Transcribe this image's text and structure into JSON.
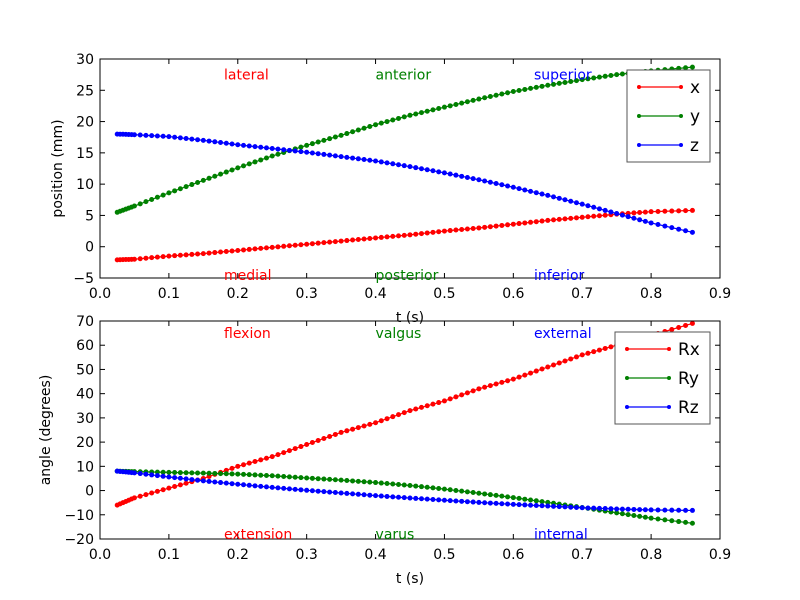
{
  "chart_data": [
    {
      "type": "line",
      "xlabel": "t (s)",
      "ylabel": "position (mm)",
      "xlim": [
        0.0,
        0.9
      ],
      "ylim": [
        -5,
        30
      ],
      "xticks": [
        "0.0",
        "0.1",
        "0.2",
        "0.3",
        "0.4",
        "0.5",
        "0.6",
        "0.7",
        "0.8",
        "0.9"
      ],
      "yticks": [
        "−5",
        "0",
        "5",
        "10",
        "15",
        "20",
        "25",
        "30"
      ],
      "grid": false,
      "legend_position": "top-right",
      "annotations": [
        {
          "text": "lateral",
          "x": 0.18,
          "y": 27.5,
          "color": "#ff0000"
        },
        {
          "text": "anterior",
          "x": 0.4,
          "y": 27.5,
          "color": "#008000"
        },
        {
          "text": "superior",
          "x": 0.63,
          "y": 27.5,
          "color": "#0000ff"
        },
        {
          "text": "medial",
          "x": 0.18,
          "y": -4.5,
          "color": "#ff0000"
        },
        {
          "text": "posterior",
          "x": 0.4,
          "y": -4.5,
          "color": "#008000"
        },
        {
          "text": "inferior",
          "x": 0.63,
          "y": -4.5,
          "color": "#0000ff"
        }
      ],
      "series": [
        {
          "name": "x",
          "color": "#ff0000",
          "x": [
            0.025,
            0.05,
            0.1,
            0.15,
            0.2,
            0.25,
            0.3,
            0.35,
            0.4,
            0.45,
            0.5,
            0.55,
            0.6,
            0.65,
            0.7,
            0.75,
            0.8,
            0.86
          ],
          "y": [
            -2.1,
            -2.0,
            -1.5,
            -1.1,
            -0.6,
            -0.1,
            0.4,
            0.9,
            1.4,
            1.9,
            2.5,
            3.0,
            3.6,
            4.2,
            4.7,
            5.2,
            5.6,
            5.8
          ]
        },
        {
          "name": "y",
          "color": "#008000",
          "x": [
            0.025,
            0.05,
            0.1,
            0.15,
            0.2,
            0.25,
            0.3,
            0.35,
            0.4,
            0.45,
            0.5,
            0.55,
            0.6,
            0.65,
            0.7,
            0.75,
            0.8,
            0.86
          ],
          "y": [
            5.5,
            6.5,
            8.6,
            10.6,
            12.6,
            14.5,
            16.2,
            17.8,
            19.5,
            21.0,
            22.3,
            23.6,
            24.8,
            25.8,
            26.7,
            27.5,
            28.1,
            28.7
          ]
        },
        {
          "name": "z",
          "color": "#0000ff",
          "x": [
            0.025,
            0.05,
            0.1,
            0.15,
            0.2,
            0.25,
            0.3,
            0.35,
            0.4,
            0.45,
            0.5,
            0.55,
            0.6,
            0.65,
            0.7,
            0.75,
            0.8,
            0.86
          ],
          "y": [
            18.0,
            17.9,
            17.6,
            17.0,
            16.3,
            15.7,
            15.1,
            14.4,
            13.7,
            12.8,
            11.8,
            10.7,
            9.5,
            8.2,
            6.8,
            5.3,
            3.8,
            2.3
          ]
        }
      ]
    },
    {
      "type": "line",
      "xlabel": "t (s)",
      "ylabel": "angle (degrees)",
      "xlim": [
        0.0,
        0.9
      ],
      "ylim": [
        -20,
        70
      ],
      "xticks": [
        "0.0",
        "0.1",
        "0.2",
        "0.3",
        "0.4",
        "0.5",
        "0.6",
        "0.7",
        "0.8",
        "0.9"
      ],
      "yticks": [
        "−20",
        "−10",
        "0",
        "10",
        "20",
        "30",
        "40",
        "50",
        "60",
        "70"
      ],
      "grid": false,
      "legend_position": "top-right",
      "annotations": [
        {
          "text": "flexion",
          "x": 0.18,
          "y": 65,
          "color": "#ff0000"
        },
        {
          "text": "valgus",
          "x": 0.4,
          "y": 65,
          "color": "#008000"
        },
        {
          "text": "external",
          "x": 0.63,
          "y": 65,
          "color": "#0000ff"
        },
        {
          "text": "extension",
          "x": 0.18,
          "y": -18,
          "color": "#ff0000"
        },
        {
          "text": "varus",
          "x": 0.4,
          "y": -18,
          "color": "#008000"
        },
        {
          "text": "internal",
          "x": 0.63,
          "y": -18,
          "color": "#0000ff"
        }
      ],
      "series": [
        {
          "name": "Rx",
          "color": "#ff0000",
          "x": [
            0.025,
            0.05,
            0.1,
            0.15,
            0.2,
            0.25,
            0.3,
            0.35,
            0.4,
            0.45,
            0.5,
            0.55,
            0.6,
            0.65,
            0.7,
            0.75,
            0.8,
            0.86
          ],
          "y": [
            -6,
            -3,
            1,
            5,
            10,
            14,
            19,
            24,
            28,
            33,
            37,
            42,
            46,
            51,
            56,
            60,
            64,
            69
          ]
        },
        {
          "name": "Ry",
          "color": "#008000",
          "x": [
            0.025,
            0.05,
            0.1,
            0.15,
            0.2,
            0.25,
            0.3,
            0.35,
            0.4,
            0.45,
            0.5,
            0.55,
            0.6,
            0.65,
            0.7,
            0.75,
            0.8,
            0.86
          ],
          "y": [
            8,
            7.8,
            7.5,
            7.2,
            6.8,
            6.1,
            5.2,
            4.3,
            3.3,
            2.1,
            0.6,
            -1.1,
            -2.9,
            -4.9,
            -7,
            -9.2,
            -11.4,
            -13.5
          ]
        },
        {
          "name": "Rz",
          "color": "#0000ff",
          "x": [
            0.025,
            0.05,
            0.1,
            0.15,
            0.2,
            0.25,
            0.3,
            0.35,
            0.4,
            0.45,
            0.5,
            0.55,
            0.6,
            0.65,
            0.7,
            0.75,
            0.8,
            0.86
          ],
          "y": [
            8,
            7.3,
            5.6,
            4,
            2.6,
            1.3,
            0.1,
            -1,
            -2.1,
            -3.1,
            -4,
            -4.9,
            -5.7,
            -6.4,
            -7.1,
            -7.6,
            -8,
            -8.2
          ]
        }
      ]
    }
  ]
}
